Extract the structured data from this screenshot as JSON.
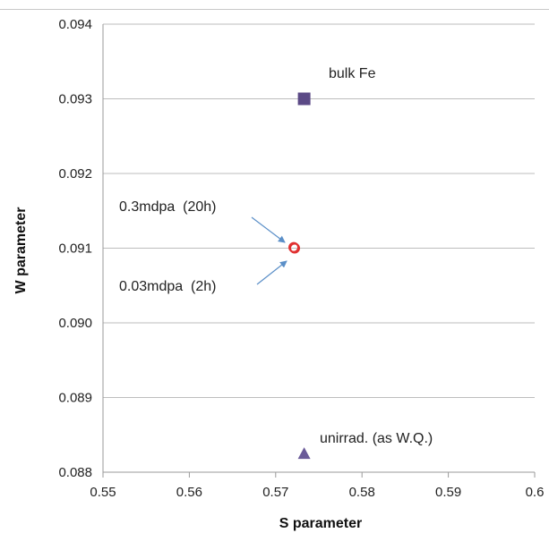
{
  "chart_data": {
    "type": "scatter",
    "title": "",
    "xlabel": "S parameter",
    "ylabel": "W parameter",
    "xlim": [
      0.55,
      0.6
    ],
    "ylim": [
      0.088,
      0.094
    ],
    "grid": "horizontal",
    "x_ticks": [
      "0.55",
      "0.56",
      "0.57",
      "0.58",
      "0.59",
      "0.6"
    ],
    "y_ticks": [
      "0.088",
      "0.089",
      "0.090",
      "0.091",
      "0.092",
      "0.093",
      "0.094"
    ],
    "points": [
      {
        "label": "bulk Fe",
        "x": 0.5733,
        "y": 0.093,
        "marker": "square",
        "color": "#5b4a86"
      },
      {
        "label": "0.3mdpa (20h)",
        "x": 0.5722,
        "y": 0.091,
        "marker": "circle",
        "color": "#e03030"
      },
      {
        "label": "0.03mdpa (2h)",
        "x": 0.5721,
        "y": 0.09101,
        "marker": "circle",
        "color": "#e03030"
      },
      {
        "label": "unirrad. (as W.Q.)",
        "x": 0.5733,
        "y": 0.08825,
        "marker": "triangle",
        "color": "#6a5a99"
      }
    ],
    "annotations": [
      {
        "text": "bulk Fe",
        "target": 0
      },
      {
        "text": "0.3mdpa  (20h)",
        "target": 1,
        "arrow": true
      },
      {
        "text": "0.03mdpa  (2h)",
        "target": 2,
        "arrow": true
      },
      {
        "text": "unirrad. (as W.Q.)",
        "target": 3
      }
    ]
  }
}
